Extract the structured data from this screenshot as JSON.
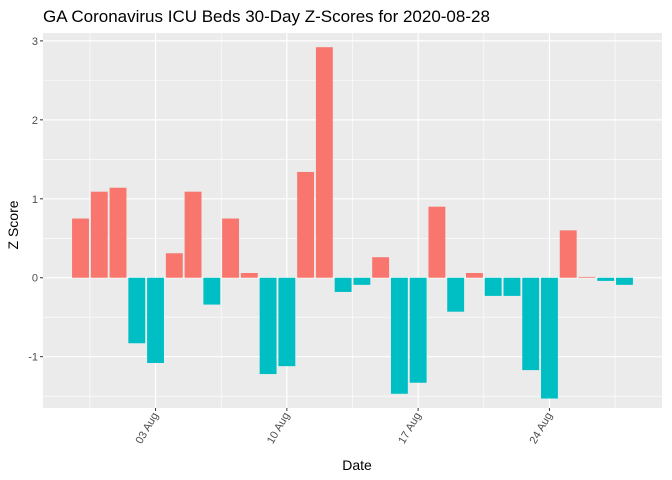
{
  "chart_data": {
    "type": "bar",
    "title": "GA Coronavirus ICU Beds 30-Day Z-Scores for 2020-08-28",
    "xlabel": "Date",
    "ylabel": "Z Score",
    "x_range": [
      "2020-07-28",
      "2020-08-30"
    ],
    "ylim": [
      -1.65,
      3.1
    ],
    "y_ticks": [
      -1,
      0,
      1,
      2,
      3
    ],
    "x_ticks": [
      {
        "date": "2020-08-03",
        "label": "03 Aug"
      },
      {
        "date": "2020-08-10",
        "label": "10 Aug"
      },
      {
        "date": "2020-08-17",
        "label": "17 Aug"
      },
      {
        "date": "2020-08-24",
        "label": "24 Aug"
      }
    ],
    "grid": true,
    "legend": "none",
    "colors": {
      "positive": "#F8766D",
      "negative": "#00BFC4",
      "panel": "#EBEBEB",
      "grid": "#FFFFFF"
    },
    "points": [
      {
        "date": "2020-07-30",
        "value": 0.75
      },
      {
        "date": "2020-07-31",
        "value": 1.09
      },
      {
        "date": "2020-08-01",
        "value": 1.14
      },
      {
        "date": "2020-08-02",
        "value": -0.83
      },
      {
        "date": "2020-08-03",
        "value": -1.08
      },
      {
        "date": "2020-08-04",
        "value": 0.31
      },
      {
        "date": "2020-08-05",
        "value": 1.09
      },
      {
        "date": "2020-08-06",
        "value": -0.34
      },
      {
        "date": "2020-08-07",
        "value": 0.75
      },
      {
        "date": "2020-08-08",
        "value": 0.06
      },
      {
        "date": "2020-08-09",
        "value": -1.22
      },
      {
        "date": "2020-08-10",
        "value": -1.12
      },
      {
        "date": "2020-08-11",
        "value": 1.34
      },
      {
        "date": "2020-08-12",
        "value": 2.92
      },
      {
        "date": "2020-08-13",
        "value": -0.18
      },
      {
        "date": "2020-08-14",
        "value": -0.09
      },
      {
        "date": "2020-08-15",
        "value": 0.26
      },
      {
        "date": "2020-08-16",
        "value": -1.47
      },
      {
        "date": "2020-08-17",
        "value": -1.33
      },
      {
        "date": "2020-08-18",
        "value": 0.9
      },
      {
        "date": "2020-08-19",
        "value": -0.43
      },
      {
        "date": "2020-08-20",
        "value": 0.06
      },
      {
        "date": "2020-08-21",
        "value": -0.23
      },
      {
        "date": "2020-08-22",
        "value": -0.23
      },
      {
        "date": "2020-08-23",
        "value": -1.17
      },
      {
        "date": "2020-08-24",
        "value": -1.53
      },
      {
        "date": "2020-08-25",
        "value": 0.6
      },
      {
        "date": "2020-08-26",
        "value": 0.01
      },
      {
        "date": "2020-08-27",
        "value": -0.04
      },
      {
        "date": "2020-08-28",
        "value": -0.09
      }
    ]
  }
}
